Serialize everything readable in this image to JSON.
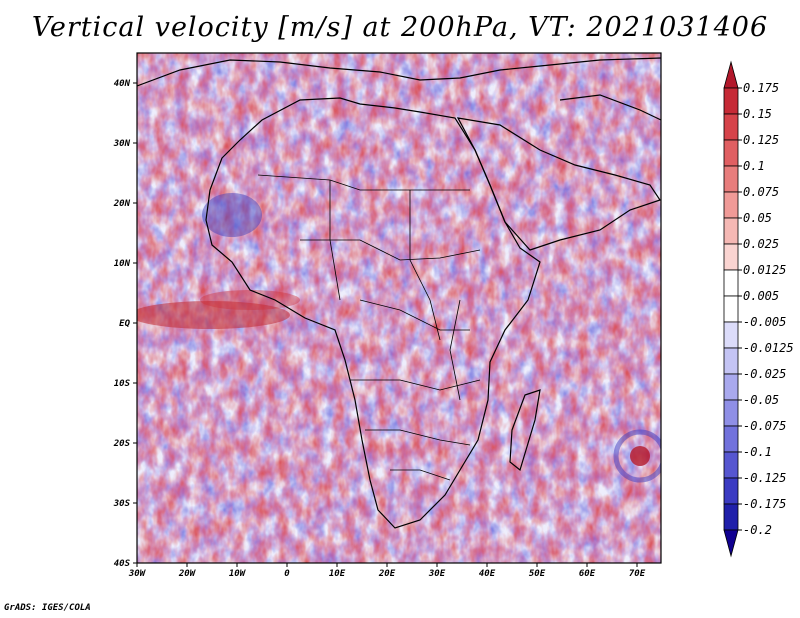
{
  "title": "Vertical velocity [m/s] at 200hPa, VT: 2021031406",
  "credit": "GrADS: IGES/COLA",
  "map": {
    "lat_labels": [
      "40N",
      "30N",
      "20N",
      "10N",
      "EQ",
      "10S",
      "20S",
      "30S",
      "40S"
    ],
    "lon_labels": [
      "30W",
      "20W",
      "10W",
      "0",
      "10E",
      "20E",
      "30E",
      "40E",
      "50E",
      "60E",
      "70E"
    ],
    "lon_range": [
      -30,
      75
    ],
    "lat_range": [
      -40,
      45
    ]
  },
  "colorbar": {
    "levels": [
      "0.175",
      "0.15",
      "0.125",
      "0.1",
      "0.075",
      "0.05",
      "0.025",
      "0.0125",
      "0.005",
      "-0.005",
      "-0.0125",
      "-0.025",
      "-0.05",
      "-0.075",
      "-0.1",
      "-0.125",
      "-0.175",
      "-0.2"
    ],
    "colors": [
      "#b2182b",
      "#c62a36",
      "#d6434a",
      "#e05f62",
      "#e87d7c",
      "#f09a97",
      "#f5b8b4",
      "#fad4d1",
      "#ffffff",
      "#ffffff",
      "#dcdcfa",
      "#c4c4f4",
      "#a9a9ee",
      "#8f8fe6",
      "#7272dc",
      "#5656d0",
      "#3b3bc2",
      "#2020aa",
      "#100090"
    ]
  }
}
